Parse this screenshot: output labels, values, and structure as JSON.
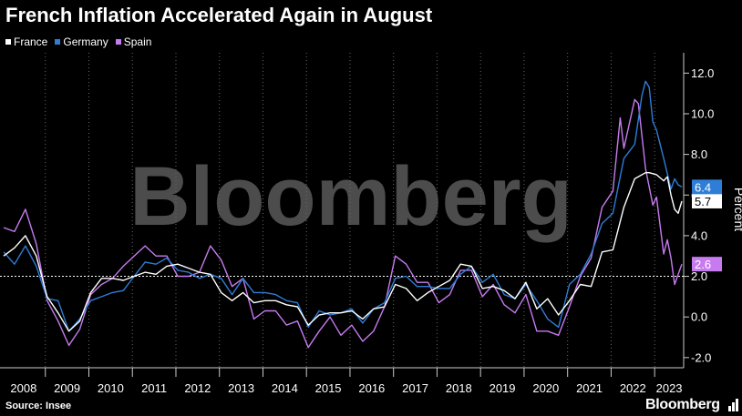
{
  "chart_data": {
    "type": "line",
    "title": "French Inflation Accelerated Again in August",
    "xlabel": "",
    "ylabel": "Percent",
    "x_start": "2008-01",
    "x_end": "2023-08",
    "x_tick_labels": [
      "2008",
      "2009",
      "2010",
      "2011",
      "2012",
      "2013",
      "2014",
      "2015",
      "2016",
      "2017",
      "2018",
      "2019",
      "2020",
      "2021",
      "2022",
      "2023"
    ],
    "ylim": [
      -2.5,
      13.0
    ],
    "y_ticks": [
      -2.0,
      0.0,
      2.0,
      4.0,
      6.0,
      8.0,
      10.0,
      12.0
    ],
    "y_tick_labels": [
      "-2.0",
      "0.0",
      "2.0",
      "4.0",
      "6.0",
      "8.0",
      "10.0",
      "12.0"
    ],
    "y_axis_side": "right",
    "grid": "vertical dotted",
    "legend_position": "top-left",
    "reference_line": 2.0,
    "watermark": "Bloomberg",
    "series": [
      {
        "name": "France",
        "color": "#ffffff",
        "end_label": "5.7",
        "points": [
          [
            "2008-01",
            3.0
          ],
          [
            "2008-04",
            3.4
          ],
          [
            "2008-07",
            4.0
          ],
          [
            "2008-10",
            3.0
          ],
          [
            "2009-01",
            1.0
          ],
          [
            "2009-04",
            0.2
          ],
          [
            "2009-07",
            -0.7
          ],
          [
            "2009-10",
            -0.2
          ],
          [
            "2010-01",
            1.2
          ],
          [
            "2010-04",
            1.9
          ],
          [
            "2010-07",
            1.9
          ],
          [
            "2010-10",
            1.8
          ],
          [
            "2011-01",
            2.0
          ],
          [
            "2011-04",
            2.2
          ],
          [
            "2011-07",
            2.1
          ],
          [
            "2011-10",
            2.5
          ],
          [
            "2012-01",
            2.6
          ],
          [
            "2012-04",
            2.4
          ],
          [
            "2012-07",
            2.2
          ],
          [
            "2012-10",
            2.1
          ],
          [
            "2013-01",
            1.2
          ],
          [
            "2013-04",
            0.8
          ],
          [
            "2013-07",
            1.2
          ],
          [
            "2013-10",
            0.7
          ],
          [
            "2014-01",
            0.8
          ],
          [
            "2014-04",
            0.8
          ],
          [
            "2014-07",
            0.6
          ],
          [
            "2014-10",
            0.5
          ],
          [
            "2015-01",
            -0.4
          ],
          [
            "2015-04",
            0.1
          ],
          [
            "2015-07",
            0.2
          ],
          [
            "2015-10",
            0.2
          ],
          [
            "2016-01",
            0.3
          ],
          [
            "2016-04",
            -0.1
          ],
          [
            "2016-07",
            0.4
          ],
          [
            "2016-10",
            0.5
          ],
          [
            "2017-01",
            1.6
          ],
          [
            "2017-04",
            1.4
          ],
          [
            "2017-07",
            0.8
          ],
          [
            "2017-10",
            1.2
          ],
          [
            "2018-01",
            1.5
          ],
          [
            "2018-04",
            1.8
          ],
          [
            "2018-07",
            2.6
          ],
          [
            "2018-10",
            2.5
          ],
          [
            "2019-01",
            1.4
          ],
          [
            "2019-04",
            1.5
          ],
          [
            "2019-07",
            1.3
          ],
          [
            "2019-10",
            0.9
          ],
          [
            "2020-01",
            1.7
          ],
          [
            "2020-04",
            0.4
          ],
          [
            "2020-07",
            0.9
          ],
          [
            "2020-10",
            0.1
          ],
          [
            "2021-01",
            0.8
          ],
          [
            "2021-04",
            1.6
          ],
          [
            "2021-07",
            1.5
          ],
          [
            "2021-10",
            3.2
          ],
          [
            "2022-01",
            3.3
          ],
          [
            "2022-04",
            5.4
          ],
          [
            "2022-07",
            6.8
          ],
          [
            "2022-10",
            7.1
          ],
          [
            "2022-11",
            7.1
          ],
          [
            "2023-01",
            7.0
          ],
          [
            "2023-03",
            6.7
          ],
          [
            "2023-04",
            6.9
          ],
          [
            "2023-05",
            6.0
          ],
          [
            "2023-06",
            5.3
          ],
          [
            "2023-07",
            5.1
          ],
          [
            "2023-08",
            5.7
          ]
        ]
      },
      {
        "name": "Germany",
        "color": "#2e7dd7",
        "end_label": "6.4",
        "points": [
          [
            "2008-01",
            3.2
          ],
          [
            "2008-04",
            2.6
          ],
          [
            "2008-07",
            3.5
          ],
          [
            "2008-10",
            2.5
          ],
          [
            "2009-01",
            0.9
          ],
          [
            "2009-04",
            0.8
          ],
          [
            "2009-07",
            -0.7
          ],
          [
            "2009-10",
            -0.1
          ],
          [
            "2010-01",
            0.8
          ],
          [
            "2010-04",
            1.0
          ],
          [
            "2010-07",
            1.2
          ],
          [
            "2010-10",
            1.3
          ],
          [
            "2011-01",
            2.0
          ],
          [
            "2011-04",
            2.7
          ],
          [
            "2011-07",
            2.6
          ],
          [
            "2011-10",
            2.9
          ],
          [
            "2012-01",
            2.3
          ],
          [
            "2012-04",
            2.2
          ],
          [
            "2012-07",
            1.9
          ],
          [
            "2012-10",
            2.1
          ],
          [
            "2013-01",
            1.9
          ],
          [
            "2013-04",
            1.1
          ],
          [
            "2013-07",
            1.9
          ],
          [
            "2013-10",
            1.2
          ],
          [
            "2014-01",
            1.2
          ],
          [
            "2014-04",
            1.1
          ],
          [
            "2014-07",
            0.8
          ],
          [
            "2014-10",
            0.7
          ],
          [
            "2015-01",
            -0.5
          ],
          [
            "2015-04",
            0.3
          ],
          [
            "2015-07",
            0.1
          ],
          [
            "2015-10",
            0.2
          ],
          [
            "2016-01",
            0.4
          ],
          [
            "2016-04",
            -0.3
          ],
          [
            "2016-07",
            0.4
          ],
          [
            "2016-10",
            0.7
          ],
          [
            "2017-01",
            1.9
          ],
          [
            "2017-04",
            2.0
          ],
          [
            "2017-07",
            1.5
          ],
          [
            "2017-10",
            1.5
          ],
          [
            "2018-01",
            1.4
          ],
          [
            "2018-04",
            1.4
          ],
          [
            "2018-07",
            2.1
          ],
          [
            "2018-10",
            2.5
          ],
          [
            "2019-01",
            1.7
          ],
          [
            "2019-04",
            2.1
          ],
          [
            "2019-07",
            1.1
          ],
          [
            "2019-10",
            0.9
          ],
          [
            "2020-01",
            1.6
          ],
          [
            "2020-04",
            0.8
          ],
          [
            "2020-07",
            -0.1
          ],
          [
            "2020-10",
            -0.5
          ],
          [
            "2021-01",
            1.6
          ],
          [
            "2021-04",
            2.1
          ],
          [
            "2021-07",
            3.1
          ],
          [
            "2021-10",
            4.6
          ],
          [
            "2022-01",
            5.1
          ],
          [
            "2022-04",
            7.8
          ],
          [
            "2022-07",
            8.5
          ],
          [
            "2022-09",
            10.9
          ],
          [
            "2022-10",
            11.6
          ],
          [
            "2022-11",
            11.3
          ],
          [
            "2022-12",
            9.6
          ],
          [
            "2023-01",
            9.2
          ],
          [
            "2023-03",
            7.8
          ],
          [
            "2023-05",
            6.3
          ],
          [
            "2023-06",
            6.8
          ],
          [
            "2023-07",
            6.5
          ],
          [
            "2023-08",
            6.4
          ]
        ]
      },
      {
        "name": "Spain",
        "color": "#c77bf0",
        "end_label": "2.6",
        "points": [
          [
            "2008-01",
            4.4
          ],
          [
            "2008-04",
            4.2
          ],
          [
            "2008-07",
            5.3
          ],
          [
            "2008-10",
            3.6
          ],
          [
            "2009-01",
            0.8
          ],
          [
            "2009-04",
            -0.2
          ],
          [
            "2009-07",
            -1.4
          ],
          [
            "2009-10",
            -0.6
          ],
          [
            "2010-01",
            1.1
          ],
          [
            "2010-04",
            1.6
          ],
          [
            "2010-07",
            1.9
          ],
          [
            "2010-10",
            2.5
          ],
          [
            "2011-01",
            3.0
          ],
          [
            "2011-04",
            3.5
          ],
          [
            "2011-07",
            3.0
          ],
          [
            "2011-10",
            3.0
          ],
          [
            "2012-01",
            2.0
          ],
          [
            "2012-04",
            2.0
          ],
          [
            "2012-07",
            2.2
          ],
          [
            "2012-10",
            3.5
          ],
          [
            "2013-01",
            2.8
          ],
          [
            "2013-04",
            1.5
          ],
          [
            "2013-07",
            1.9
          ],
          [
            "2013-10",
            -0.1
          ],
          [
            "2014-01",
            0.3
          ],
          [
            "2014-04",
            0.3
          ],
          [
            "2014-07",
            -0.4
          ],
          [
            "2014-10",
            -0.2
          ],
          [
            "2015-01",
            -1.5
          ],
          [
            "2015-04",
            -0.7
          ],
          [
            "2015-07",
            -0.0
          ],
          [
            "2015-10",
            -0.9
          ],
          [
            "2016-01",
            -0.4
          ],
          [
            "2016-04",
            -1.2
          ],
          [
            "2016-07",
            -0.7
          ],
          [
            "2016-10",
            0.5
          ],
          [
            "2017-01",
            3.0
          ],
          [
            "2017-04",
            2.6
          ],
          [
            "2017-07",
            1.7
          ],
          [
            "2017-10",
            1.7
          ],
          [
            "2018-01",
            0.7
          ],
          [
            "2018-04",
            1.1
          ],
          [
            "2018-07",
            2.3
          ],
          [
            "2018-10",
            2.3
          ],
          [
            "2019-01",
            1.0
          ],
          [
            "2019-04",
            1.6
          ],
          [
            "2019-07",
            0.6
          ],
          [
            "2019-10",
            0.2
          ],
          [
            "2020-01",
            1.1
          ],
          [
            "2020-04",
            -0.7
          ],
          [
            "2020-07",
            -0.7
          ],
          [
            "2020-10",
            -0.9
          ],
          [
            "2021-01",
            0.5
          ],
          [
            "2021-04",
            2.0
          ],
          [
            "2021-07",
            2.9
          ],
          [
            "2021-10",
            5.4
          ],
          [
            "2022-01",
            6.2
          ],
          [
            "2022-03",
            9.8
          ],
          [
            "2022-04",
            8.3
          ],
          [
            "2022-07",
            10.7
          ],
          [
            "2022-08",
            10.5
          ],
          [
            "2022-10",
            7.3
          ],
          [
            "2022-12",
            5.5
          ],
          [
            "2023-01",
            5.9
          ],
          [
            "2023-03",
            3.1
          ],
          [
            "2023-04",
            3.8
          ],
          [
            "2023-05",
            2.9
          ],
          [
            "2023-06",
            1.6
          ],
          [
            "2023-07",
            2.1
          ],
          [
            "2023-08",
            2.6
          ]
        ]
      }
    ]
  },
  "footer": {
    "source": "Source: Insee",
    "brand": "Bloomberg"
  },
  "colors": {
    "background": "#000000",
    "france": "#ffffff",
    "germany": "#2e7dd7",
    "spain": "#c77bf0",
    "grid": "#6a6a6a",
    "watermark": "#5a5a5a"
  }
}
